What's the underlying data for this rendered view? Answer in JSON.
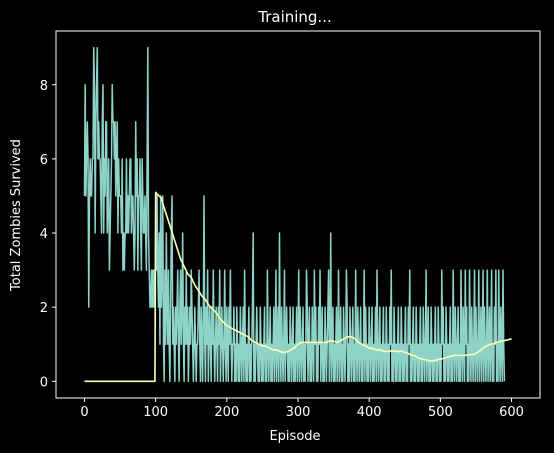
{
  "chart_data": {
    "type": "line",
    "title": "Training...",
    "xlabel": "Episode",
    "ylabel": "Total Zombies Survived",
    "xlim": [
      -40,
      640
    ],
    "ylim": [
      -0.45,
      9.45
    ],
    "xticks": [
      0,
      100,
      200,
      300,
      400,
      500,
      600
    ],
    "yticks": [
      0,
      2,
      4,
      6,
      8
    ],
    "grid": false,
    "legend": "none",
    "background": "#000000",
    "series": [
      {
        "color": "#8dd3c7",
        "note_x": "episodes 0..600",
        "y": [
          5,
          8,
          5,
          6,
          7,
          6,
          2,
          5,
          6,
          5,
          5,
          6,
          6,
          9,
          8,
          4,
          7,
          8,
          9,
          6,
          7,
          6,
          6,
          5,
          4,
          7,
          8,
          4,
          6,
          5,
          7,
          7,
          4,
          5,
          6,
          3,
          4,
          5,
          6,
          8,
          7,
          7,
          6,
          7,
          5,
          6,
          7,
          4,
          6,
          5,
          5,
          5,
          4,
          6,
          3,
          4,
          3,
          4,
          4,
          6,
          4,
          5,
          4,
          5,
          6,
          6,
          4,
          5,
          5,
          4,
          3,
          4,
          7,
          5,
          6,
          3,
          5,
          5,
          6,
          4,
          3,
          6,
          5,
          4,
          4,
          5,
          4,
          3,
          6,
          9,
          4,
          3,
          2,
          2,
          3,
          2,
          3,
          2,
          3,
          2,
          4,
          3,
          5,
          3,
          2,
          4,
          1,
          5,
          2,
          3,
          5,
          1,
          0,
          3,
          1,
          4,
          2,
          1,
          3,
          1,
          0,
          2,
          4,
          5,
          1,
          2,
          1,
          0,
          2,
          1,
          2,
          3,
          1,
          0,
          2,
          3,
          1,
          2,
          4,
          1,
          0,
          2,
          1,
          3,
          1,
          2,
          0,
          1,
          2,
          1,
          3,
          2,
          1,
          0,
          1,
          2,
          1,
          0,
          1,
          1,
          2,
          3,
          1,
          0,
          2,
          1,
          0,
          2,
          5,
          1,
          0,
          2,
          1,
          3,
          0,
          1,
          2,
          1,
          0,
          2,
          1,
          3,
          1,
          0,
          1,
          2,
          1,
          0,
          2,
          1,
          3,
          0,
          1,
          2,
          1,
          0,
          1,
          3,
          1,
          0,
          2,
          1,
          0,
          2,
          1,
          3,
          1,
          0,
          1,
          1,
          2,
          0,
          1,
          0,
          2,
          1,
          0,
          1,
          0,
          2,
          1,
          0,
          1,
          2,
          0,
          3,
          1,
          0,
          1,
          0,
          1,
          2,
          0,
          1,
          0,
          1,
          2,
          4,
          0,
          1,
          0,
          1,
          2,
          1,
          0,
          1,
          0,
          2,
          1,
          0,
          1,
          0,
          1,
          2,
          0,
          1,
          0,
          3,
          1,
          0,
          1,
          2,
          0,
          1,
          0,
          1,
          2,
          0,
          1,
          3,
          0,
          1,
          2,
          0,
          4,
          1,
          0,
          2,
          1,
          0,
          1,
          3,
          0,
          1,
          2,
          1,
          0,
          1,
          0,
          2,
          1,
          0,
          1,
          2,
          0,
          1,
          0,
          1,
          2,
          0,
          1,
          3,
          0,
          2,
          1,
          0,
          1,
          2,
          0,
          1,
          0,
          1,
          3,
          2,
          0,
          1,
          2,
          0,
          1,
          0,
          2,
          1,
          0,
          3,
          1,
          2,
          0,
          1,
          0,
          2,
          1,
          3,
          0,
          1,
          2,
          0,
          1,
          0,
          2,
          1,
          0,
          1,
          2,
          3,
          0,
          1,
          4,
          0,
          1,
          2,
          0,
          1,
          0,
          1,
          2,
          0,
          1,
          3,
          0,
          1,
          2,
          0,
          1,
          0,
          2,
          1,
          0,
          1,
          3,
          2,
          0,
          1,
          0,
          2,
          1,
          0,
          1,
          2,
          0,
          1,
          0,
          3,
          1,
          0,
          2,
          1,
          0,
          1,
          2,
          0,
          1,
          0,
          1,
          3,
          0,
          2,
          1,
          0,
          1,
          0,
          2,
          1,
          0,
          1,
          2,
          0,
          1,
          0,
          1,
          2,
          0,
          3,
          1,
          0,
          1,
          2,
          0,
          1,
          0,
          1,
          2,
          0,
          1,
          0,
          2,
          1,
          0,
          1,
          0,
          2,
          1,
          3,
          0,
          1,
          0,
          2,
          1,
          0,
          1,
          0,
          1,
          2,
          0,
          1,
          0,
          2,
          1,
          0,
          1,
          0,
          1,
          2,
          0,
          1,
          0,
          2,
          1,
          3,
          0,
          1,
          0,
          1,
          2,
          0,
          1,
          0,
          2,
          1,
          0,
          1,
          0,
          1,
          2,
          0,
          1,
          0,
          2,
          1,
          0,
          1,
          3,
          0,
          1,
          2,
          0,
          1,
          0,
          2,
          1,
          0,
          1,
          0,
          1,
          2,
          0,
          1,
          0,
          2,
          1,
          0,
          1,
          0,
          3,
          1,
          2,
          0,
          1,
          0,
          2,
          1,
          0,
          1,
          0,
          1,
          2,
          0,
          1,
          0,
          3,
          1,
          0,
          2,
          1,
          0,
          1,
          2,
          0,
          1,
          0,
          3,
          1,
          0,
          2,
          1,
          0,
          3,
          1,
          2,
          0,
          1,
          0,
          3,
          1,
          0,
          2,
          1,
          0,
          1,
          3,
          0,
          2,
          1,
          0,
          1,
          3,
          0,
          1,
          2,
          0,
          1,
          3,
          0,
          2,
          1,
          0,
          1,
          3,
          0,
          1,
          2,
          0,
          1,
          3,
          0,
          1,
          0,
          2,
          1,
          3,
          0,
          1,
          0,
          3,
          1,
          0,
          2,
          1,
          0,
          3,
          1,
          0
        ]
      },
      {
        "color": "#ffffb3",
        "points": [
          [
            0,
            0
          ],
          [
            99,
            0
          ],
          [
            100,
            5.1
          ],
          [
            102,
            5.05
          ],
          [
            105,
            5.0
          ],
          [
            108,
            4.95
          ],
          [
            110,
            4.8
          ],
          [
            115,
            4.5
          ],
          [
            120,
            4.2
          ],
          [
            125,
            3.9
          ],
          [
            130,
            3.6
          ],
          [
            135,
            3.3
          ],
          [
            140,
            3.1
          ],
          [
            145,
            2.9
          ],
          [
            150,
            2.8
          ],
          [
            155,
            2.6
          ],
          [
            160,
            2.45
          ],
          [
            165,
            2.3
          ],
          [
            170,
            2.2
          ],
          [
            175,
            2.05
          ],
          [
            180,
            1.95
          ],
          [
            185,
            1.85
          ],
          [
            190,
            1.7
          ],
          [
            195,
            1.6
          ],
          [
            200,
            1.5
          ],
          [
            205,
            1.45
          ],
          [
            210,
            1.4
          ],
          [
            215,
            1.35
          ],
          [
            220,
            1.3
          ],
          [
            225,
            1.25
          ],
          [
            230,
            1.2
          ],
          [
            235,
            1.1
          ],
          [
            240,
            1.05
          ],
          [
            245,
            1.0
          ],
          [
            250,
            0.95
          ],
          [
            255,
            0.95
          ],
          [
            260,
            0.9
          ],
          [
            265,
            0.85
          ],
          [
            270,
            0.85
          ],
          [
            275,
            0.8
          ],
          [
            280,
            0.78
          ],
          [
            285,
            0.8
          ],
          [
            290,
            0.85
          ],
          [
            295,
            0.9
          ],
          [
            300,
            1.0
          ],
          [
            305,
            1.05
          ],
          [
            310,
            1.05
          ],
          [
            315,
            1.05
          ],
          [
            320,
            1.05
          ],
          [
            325,
            1.05
          ],
          [
            330,
            1.05
          ],
          [
            335,
            1.05
          ],
          [
            340,
            1.05
          ],
          [
            345,
            1.1
          ],
          [
            350,
            1.08
          ],
          [
            355,
            1.05
          ],
          [
            360,
            1.1
          ],
          [
            365,
            1.15
          ],
          [
            370,
            1.2
          ],
          [
            375,
            1.2
          ],
          [
            380,
            1.15
          ],
          [
            385,
            1.05
          ],
          [
            390,
            1.0
          ],
          [
            395,
            0.95
          ],
          [
            400,
            0.9
          ],
          [
            405,
            0.88
          ],
          [
            410,
            0.85
          ],
          [
            415,
            0.85
          ],
          [
            420,
            0.82
          ],
          [
            425,
            0.8
          ],
          [
            430,
            0.82
          ],
          [
            435,
            0.82
          ],
          [
            440,
            0.8
          ],
          [
            445,
            0.82
          ],
          [
            450,
            0.78
          ],
          [
            455,
            0.75
          ],
          [
            460,
            0.7
          ],
          [
            465,
            0.68
          ],
          [
            470,
            0.62
          ],
          [
            475,
            0.6
          ],
          [
            480,
            0.58
          ],
          [
            485,
            0.55
          ],
          [
            490,
            0.55
          ],
          [
            495,
            0.58
          ],
          [
            500,
            0.6
          ],
          [
            505,
            0.62
          ],
          [
            510,
            0.65
          ],
          [
            515,
            0.68
          ],
          [
            520,
            0.7
          ],
          [
            525,
            0.7
          ],
          [
            530,
            0.7
          ],
          [
            535,
            0.7
          ],
          [
            540,
            0.72
          ],
          [
            545,
            0.72
          ],
          [
            550,
            0.75
          ],
          [
            555,
            0.82
          ],
          [
            560,
            0.9
          ],
          [
            565,
            0.95
          ],
          [
            570,
            1.0
          ],
          [
            575,
            1.02
          ],
          [
            580,
            1.05
          ],
          [
            585,
            1.08
          ],
          [
            590,
            1.1
          ],
          [
            595,
            1.12
          ],
          [
            600,
            1.15
          ]
        ]
      }
    ]
  }
}
